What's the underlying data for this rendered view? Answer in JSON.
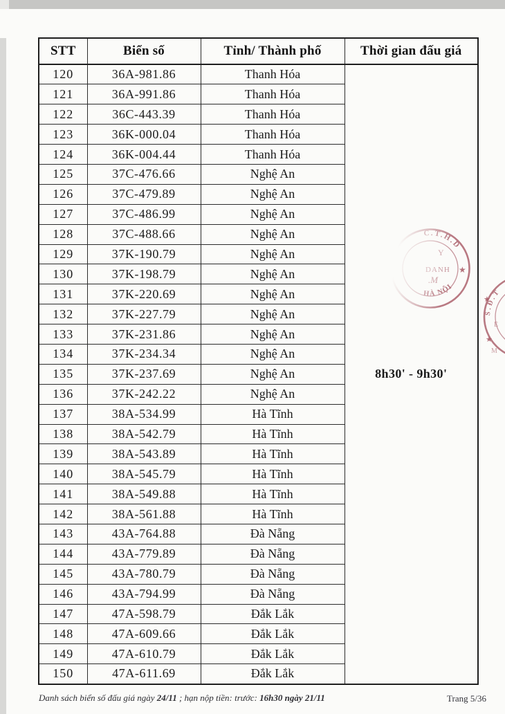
{
  "table": {
    "columns": [
      "STT",
      "Biển số",
      "Tỉnh/ Thành phố",
      "Thời gian đấu giá"
    ],
    "auction_time": "8h30' - 9h30'",
    "rows": [
      {
        "stt": "120",
        "plate": "36A-981.86",
        "province": "Thanh Hóa"
      },
      {
        "stt": "121",
        "plate": "36A-991.86",
        "province": "Thanh Hóa"
      },
      {
        "stt": "122",
        "plate": "36C-443.39",
        "province": "Thanh Hóa"
      },
      {
        "stt": "123",
        "plate": "36K-000.04",
        "province": "Thanh Hóa"
      },
      {
        "stt": "124",
        "plate": "36K-004.44",
        "province": "Thanh Hóa"
      },
      {
        "stt": "125",
        "plate": "37C-476.66",
        "province": "Nghệ An"
      },
      {
        "stt": "126",
        "plate": "37C-479.89",
        "province": "Nghệ An"
      },
      {
        "stt": "127",
        "plate": "37C-486.99",
        "province": "Nghệ An"
      },
      {
        "stt": "128",
        "plate": "37C-488.66",
        "province": "Nghệ An"
      },
      {
        "stt": "129",
        "plate": "37K-190.79",
        "province": "Nghệ An"
      },
      {
        "stt": "130",
        "plate": "37K-198.79",
        "province": "Nghệ An"
      },
      {
        "stt": "131",
        "plate": "37K-220.69",
        "province": "Nghệ An"
      },
      {
        "stt": "132",
        "plate": "37K-227.79",
        "province": "Nghệ An"
      },
      {
        "stt": "133",
        "plate": "37K-231.86",
        "province": "Nghệ An"
      },
      {
        "stt": "134",
        "plate": "37K-234.34",
        "province": "Nghệ An"
      },
      {
        "stt": "135",
        "plate": "37K-237.69",
        "province": "Nghệ An"
      },
      {
        "stt": "136",
        "plate": "37K-242.22",
        "province": "Nghệ An"
      },
      {
        "stt": "137",
        "plate": "38A-534.99",
        "province": "Hà Tĩnh"
      },
      {
        "stt": "138",
        "plate": "38A-542.79",
        "province": "Hà Tĩnh"
      },
      {
        "stt": "139",
        "plate": "38A-543.89",
        "province": "Hà Tĩnh"
      },
      {
        "stt": "140",
        "plate": "38A-545.79",
        "province": "Hà Tĩnh"
      },
      {
        "stt": "141",
        "plate": "38A-549.88",
        "province": "Hà Tĩnh"
      },
      {
        "stt": "142",
        "plate": "38A-561.88",
        "province": "Hà Tĩnh"
      },
      {
        "stt": "143",
        "plate": "43A-764.88",
        "province": "Đà Nẵng"
      },
      {
        "stt": "144",
        "plate": "43A-779.89",
        "province": "Đà Nẵng"
      },
      {
        "stt": "145",
        "plate": "43A-780.79",
        "province": "Đà Nẵng"
      },
      {
        "stt": "146",
        "plate": "43A-794.99",
        "province": "Đà Nẵng"
      },
      {
        "stt": "147",
        "plate": "47A-598.79",
        "province": "Đắk Lắk"
      },
      {
        "stt": "148",
        "plate": "47A-609.66",
        "province": "Đắk Lắk"
      },
      {
        "stt": "149",
        "plate": "47A-610.79",
        "province": "Đắk Lắk"
      },
      {
        "stt": "150",
        "plate": "47A-611.69",
        "province": "Đắk Lắk"
      }
    ]
  },
  "footer": {
    "parts": [
      {
        "text": "Danh sách biển số đấu giá ngày ",
        "bold": false
      },
      {
        "text": "24/11",
        "bold": true
      },
      {
        "text": " ; hạn nộp tiền: trước: ",
        "bold": false
      },
      {
        "text": "16h30 ngày 21/11",
        "bold": true
      }
    ],
    "page_label": "Trang 5/36"
  },
  "stamps": {
    "color": "#a85a66",
    "upper": {
      "top_arc": "C.T.H.D",
      "bottom_arc": "HÀ NỘI",
      "line1": "Y",
      "line2": "DANH",
      "line3": ".M",
      "star": "★"
    },
    "lower": {
      "arc": "S.Đ.T",
      "star1": "★",
      "star2": "★",
      "inner1": "E",
      "inner2": "M"
    }
  }
}
